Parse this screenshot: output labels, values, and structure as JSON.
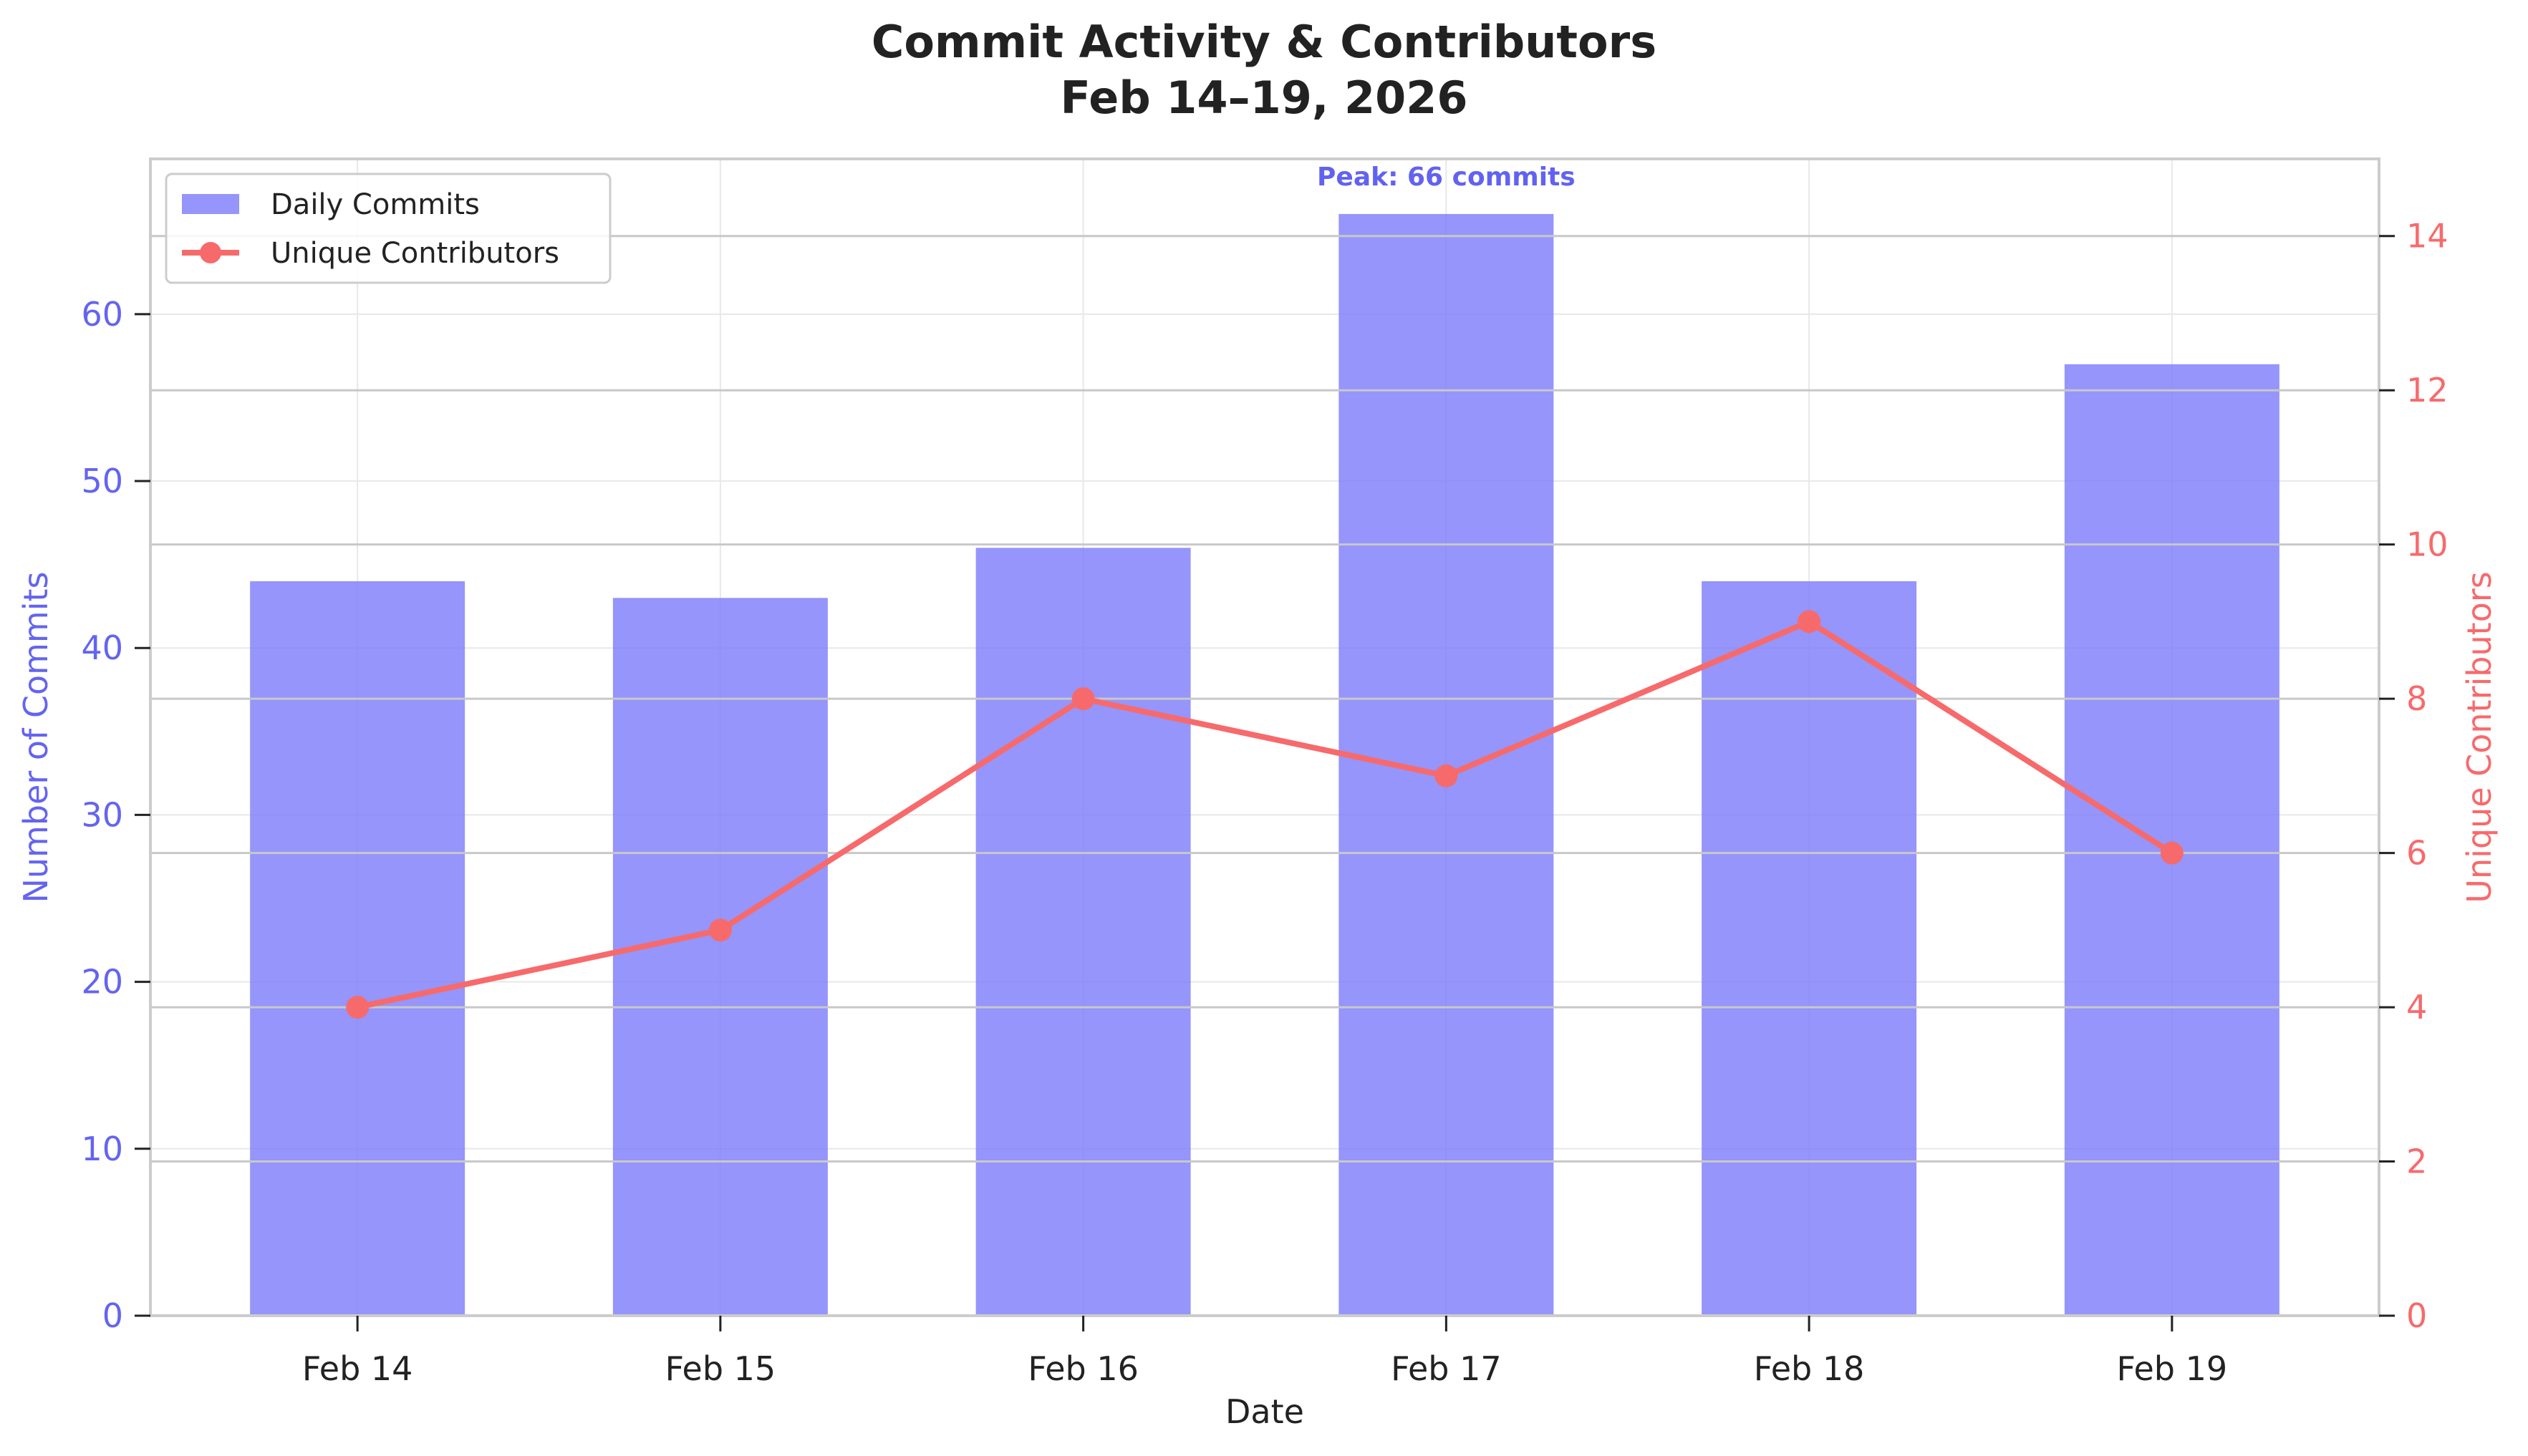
{
  "chart_data": {
    "type": "bar",
    "title": [
      "Commit Activity & Contributors",
      "Feb 14–19, 2026"
    ],
    "xlabel": "Date",
    "ylabel": "Number of Commits",
    "y2label": "Unique Contributors",
    "categories": [
      "Feb 14",
      "Feb 15",
      "Feb 16",
      "Feb 17",
      "Feb 18",
      "Feb 19"
    ],
    "series": [
      {
        "name": "Daily Commits",
        "type": "bar",
        "axis": "left",
        "color": "#8080FA",
        "values": [
          44,
          43,
          46,
          66,
          44,
          57
        ]
      },
      {
        "name": "Unique Contributors",
        "type": "line",
        "axis": "right",
        "color": "#F76A6C",
        "marker": "circle",
        "values": [
          4,
          5,
          8,
          7,
          9,
          6
        ]
      }
    ],
    "ylim": [
      0,
      69.3
    ],
    "y2lim": [
      0,
      15
    ],
    "yticks": [
      0,
      10,
      20,
      30,
      40,
      50,
      60
    ],
    "y2ticks": [
      0,
      2,
      4,
      6,
      8,
      10,
      12,
      14
    ],
    "annotation": {
      "text": "Peak: 66 commits",
      "category": "Feb 17",
      "value": 66,
      "color": "#6262F0"
    },
    "grid": true,
    "legend_position": "top-left",
    "left_axis_color": "#6464F0",
    "right_axis_color": "#F76A6C",
    "text_color": "#222222"
  }
}
